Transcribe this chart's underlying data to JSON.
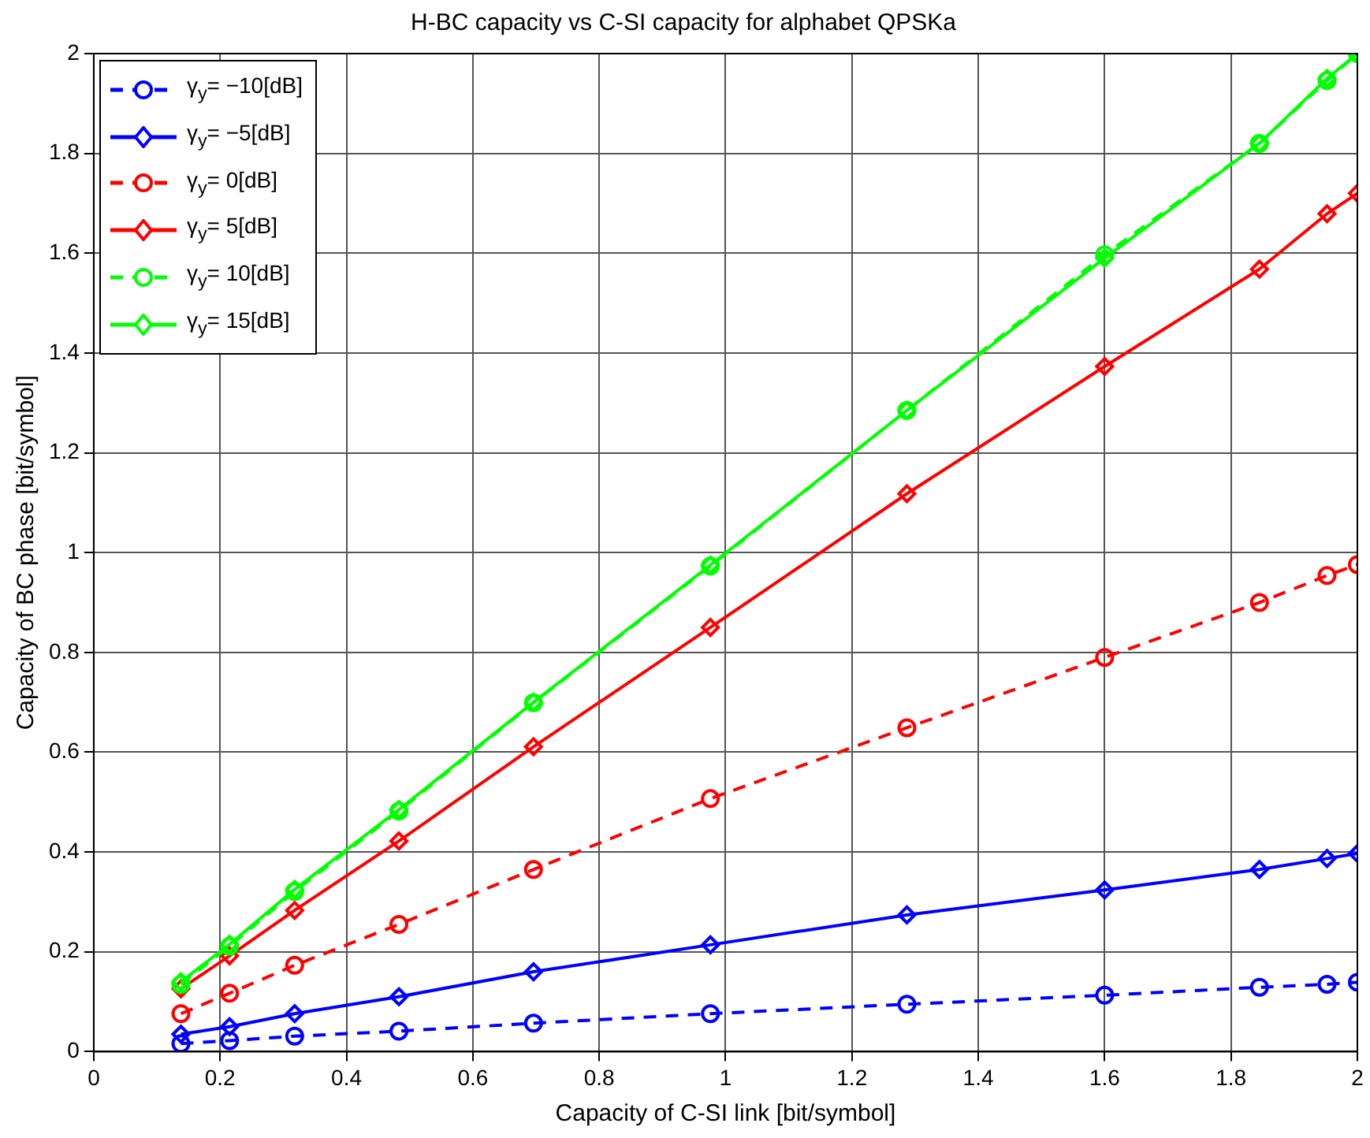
{
  "chart_data": {
    "type": "line",
    "title": "H-BC capacity vs C-SI capacity for alphabet QPSKa",
    "xlabel": "Capacity of C-SI link [bit/symbol]",
    "ylabel": "Capacity of BC phase [bit/symbol]",
    "x": [
      0.138,
      0.215,
      0.318,
      0.483,
      0.696,
      0.976,
      1.287,
      1.6,
      1.845,
      1.952,
      2.0
    ],
    "xlim": [
      0,
      2
    ],
    "xticks": [
      0,
      0.2,
      0.4,
      0.6,
      0.8,
      1,
      1.2,
      1.4,
      1.6,
      1.8,
      2
    ],
    "ylim": [
      0,
      2
    ],
    "yticks": [
      0,
      0.2,
      0.4,
      0.6,
      0.8,
      1,
      1.2,
      1.4,
      1.6,
      1.8,
      2
    ],
    "grid": true,
    "legend": "top left",
    "series": [
      {
        "name": "γ$_{y}$= −10[dB]",
        "color": "#0000ff",
        "marker": "circle",
        "line_style": "dashed",
        "values": [
          0.016,
          0.022,
          0.031,
          0.041,
          0.057,
          0.076,
          0.095,
          0.113,
          0.129,
          0.135,
          0.139
        ]
      },
      {
        "name": "γ$_{y}$= −5[dB]",
        "color": "#0000ff",
        "marker": "diamond",
        "line_style": "solid",
        "values": [
          0.035,
          0.05,
          0.076,
          0.11,
          0.16,
          0.214,
          0.274,
          0.324,
          0.365,
          0.387,
          0.397
        ]
      },
      {
        "name": "γ$_{y}$= 0[dB]",
        "color": "#ff0000",
        "marker": "circle",
        "line_style": "dashed",
        "values": [
          0.076,
          0.117,
          0.173,
          0.255,
          0.365,
          0.507,
          0.649,
          0.79,
          0.9,
          0.954,
          0.976
        ]
      },
      {
        "name": "γ$_{y}$= 5[dB]",
        "color": "#ff0000",
        "marker": "diamond",
        "line_style": "solid",
        "values": [
          0.126,
          0.192,
          0.283,
          0.422,
          0.611,
          0.85,
          1.118,
          1.373,
          1.568,
          1.679,
          1.72
        ]
      },
      {
        "name": "γ$_{y}$= 10[dB]",
        "color": "#00ff00",
        "marker": "circle",
        "line_style": "dashed",
        "values": [
          0.135,
          0.211,
          0.321,
          0.482,
          0.699,
          0.973,
          1.285,
          1.597,
          1.82,
          1.946,
          2.0
        ]
      },
      {
        "name": "γ$_{y}$= 15[dB]",
        "color": "#00ff00",
        "marker": "diamond",
        "line_style": "solid",
        "values": [
          0.14,
          0.215,
          0.325,
          0.485,
          0.7,
          0.975,
          1.285,
          1.59,
          1.82,
          1.95,
          2.0
        ]
      }
    ]
  }
}
